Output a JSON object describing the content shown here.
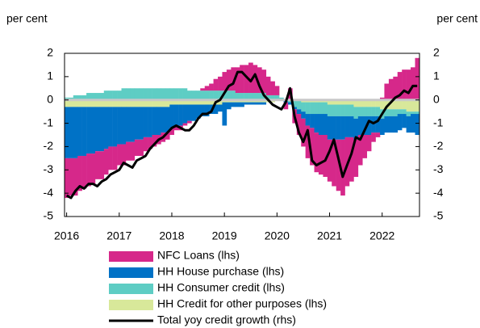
{
  "chart_data": {
    "type": "bar",
    "stacked": true,
    "y_label": "per cent",
    "y2_label": "per cent",
    "x": [
      2016,
      2016.083,
      2016.167,
      2016.25,
      2016.333,
      2016.417,
      2016.5,
      2016.583,
      2016.667,
      2016.75,
      2016.833,
      2016.917,
      2017,
      2017.083,
      2017.167,
      2017.25,
      2017.333,
      2017.417,
      2017.5,
      2017.583,
      2017.667,
      2017.75,
      2017.833,
      2017.917,
      2018,
      2018.083,
      2018.167,
      2018.25,
      2018.333,
      2018.417,
      2018.5,
      2018.583,
      2018.667,
      2018.75,
      2018.833,
      2018.917,
      2019,
      2019.083,
      2019.167,
      2019.25,
      2019.333,
      2019.417,
      2019.5,
      2019.583,
      2019.667,
      2019.75,
      2019.833,
      2019.917,
      2020,
      2020.083,
      2020.167,
      2020.25,
      2020.333,
      2020.417,
      2020.5,
      2020.583,
      2020.667,
      2020.75,
      2020.833,
      2020.917,
      2021,
      2021.083,
      2021.167,
      2021.25,
      2021.333,
      2021.417,
      2021.5,
      2021.583,
      2021.667,
      2021.75,
      2021.833,
      2021.917,
      2022,
      2022.083,
      2022.167,
      2022.25,
      2022.333,
      2022.417,
      2022.5,
      2022.583,
      2022.667
    ],
    "xlim": [
      2015.96,
      2022.71
    ],
    "xticks": [
      2016,
      2017,
      2018,
      2019,
      2020,
      2021,
      2022
    ],
    "ylim": [
      -5,
      2
    ],
    "yticks": [
      2,
      1,
      0,
      -1,
      -2,
      -3,
      -4,
      -5
    ],
    "y2lim": [
      -5,
      2
    ],
    "y2ticks": [
      2,
      1,
      0,
      -1,
      -2,
      -3,
      -4,
      -5
    ],
    "legend": "bottom",
    "series": [
      {
        "name": "NFC Loans (lhs)",
        "color": "#d6288a",
        "values": [
          -1.7,
          -1.6,
          -1.6,
          -1.5,
          -1.4,
          -1.4,
          -1.3,
          -1.2,
          -1.2,
          -1.1,
          -1.0,
          -1.0,
          -0.9,
          -0.9,
          -0.8,
          -0.8,
          -0.7,
          -0.7,
          -0.6,
          -0.5,
          -0.5,
          -0.4,
          -0.4,
          -0.3,
          -0.3,
          -0.2,
          -0.2,
          -0.1,
          -0.1,
          0.0,
          0.0,
          0.1,
          0.2,
          0.3,
          0.5,
          0.6,
          0.8,
          0.9,
          1.0,
          1.1,
          1.2,
          1.2,
          1.3,
          1.2,
          1.1,
          1.0,
          0.8,
          0.6,
          0.4,
          0.0,
          -0.3,
          0.5,
          -0.6,
          -0.9,
          -1.2,
          -1.4,
          -1.6,
          -1.7,
          -1.7,
          -1.8,
          -1.8,
          -2.0,
          -2.2,
          -2.4,
          -2.1,
          -1.9,
          -1.6,
          -1.3,
          -1.0,
          -0.7,
          -0.4,
          -0.2,
          0.1,
          0.7,
          0.9,
          1.0,
          1.2,
          1.3,
          1.3,
          1.4,
          1.8
        ]
      },
      {
        "name": "HH House purchase (lhs)",
        "color": "#0072c6",
        "values": [
          -2.2,
          -2.2,
          -2.2,
          -2.1,
          -2.1,
          -2.0,
          -2.0,
          -1.9,
          -1.9,
          -1.8,
          -1.7,
          -1.7,
          -1.6,
          -1.6,
          -1.5,
          -1.5,
          -1.4,
          -1.4,
          -1.3,
          -1.3,
          -1.2,
          -1.2,
          -1.1,
          -1.1,
          -1.0,
          -0.9,
          -0.9,
          -0.8,
          -0.7,
          -0.7,
          -0.6,
          -0.5,
          -0.5,
          -0.4,
          -0.4,
          -0.3,
          -1.0,
          -0.3,
          -0.2,
          -0.2,
          -0.2,
          -0.1,
          -0.1,
          -0.1,
          -0.1,
          -0.1,
          0.0,
          0.0,
          0.0,
          0.0,
          -0.1,
          -0.1,
          -0.1,
          -0.2,
          -0.3,
          -0.5,
          -0.6,
          -0.8,
          -0.9,
          -0.9,
          -1.0,
          -1.0,
          -1.0,
          -1.0,
          -0.9,
          -0.9,
          -0.9,
          -0.8,
          -0.8,
          -0.8,
          -0.7,
          -0.7,
          -0.7,
          -0.7,
          -0.7,
          -0.7,
          -0.7,
          -0.6,
          -0.7,
          -0.8,
          -0.9
        ]
      },
      {
        "name": "HH Consumer credit (lhs)",
        "color": "#5ecdc4",
        "values": [
          0.1,
          0.1,
          0.2,
          0.2,
          0.2,
          0.3,
          0.3,
          0.3,
          0.3,
          0.4,
          0.4,
          0.4,
          0.4,
          0.5,
          0.5,
          0.5,
          0.5,
          0.5,
          0.5,
          0.5,
          0.5,
          0.5,
          0.5,
          0.5,
          0.5,
          0.5,
          0.5,
          0.5,
          0.4,
          0.4,
          0.4,
          0.4,
          0.4,
          0.4,
          0.4,
          0.4,
          0.4,
          0.4,
          0.4,
          0.3,
          0.3,
          0.3,
          0.3,
          0.3,
          0.3,
          0.3,
          0.2,
          0.2,
          0.2,
          0.1,
          0.0,
          -0.1,
          -0.3,
          -0.4,
          -0.4,
          -0.5,
          -0.5,
          -0.5,
          -0.5,
          -0.5,
          -0.5,
          -0.5,
          -0.5,
          -0.5,
          -0.5,
          -0.5,
          -0.5,
          -0.4,
          -0.4,
          -0.4,
          -0.4,
          -0.4,
          -0.4,
          -0.3,
          -0.3,
          -0.3,
          -0.2,
          -0.2,
          -0.2,
          -0.1,
          -0.1
        ]
      },
      {
        "name": "HH Credit for other purposes (lhs)",
        "color": "#d8e89a",
        "values": [
          -0.3,
          -0.3,
          -0.3,
          -0.3,
          -0.3,
          -0.3,
          -0.3,
          -0.3,
          -0.3,
          -0.3,
          -0.3,
          -0.3,
          -0.3,
          -0.3,
          -0.3,
          -0.3,
          -0.3,
          -0.3,
          -0.3,
          -0.3,
          -0.3,
          -0.3,
          -0.3,
          -0.3,
          -0.2,
          -0.2,
          -0.2,
          -0.2,
          -0.2,
          -0.2,
          -0.2,
          -0.2,
          -0.2,
          -0.2,
          -0.2,
          -0.2,
          -0.1,
          -0.1,
          -0.1,
          -0.1,
          -0.1,
          -0.1,
          -0.1,
          -0.1,
          -0.1,
          -0.1,
          -0.1,
          -0.1,
          0.0,
          0.0,
          0.0,
          0.0,
          0.0,
          0.0,
          -0.1,
          -0.1,
          -0.1,
          -0.1,
          -0.1,
          -0.1,
          -0.2,
          -0.2,
          -0.2,
          -0.2,
          -0.2,
          -0.2,
          -0.3,
          -0.3,
          -0.3,
          -0.3,
          -0.3,
          -0.3,
          -0.4,
          -0.4,
          -0.4,
          -0.4,
          -0.4,
          -0.4,
          -0.5,
          -0.5,
          -0.5
        ]
      },
      {
        "name": "Total yoy credit growth (rhs)",
        "color": "#000000",
        "type": "line",
        "axis": "y2",
        "values": [
          -4.1,
          -4.2,
          -3.9,
          -3.7,
          -3.8,
          -3.6,
          -3.6,
          -3.7,
          -3.5,
          -3.4,
          -3.2,
          -3.1,
          -3.0,
          -2.7,
          -2.8,
          -2.9,
          -2.6,
          -2.5,
          -2.4,
          -2.1,
          -1.9,
          -1.7,
          -1.6,
          -1.4,
          -1.2,
          -1.1,
          -1.2,
          -1.3,
          -1.3,
          -1.1,
          -0.8,
          -0.6,
          -0.6,
          -0.5,
          -0.1,
          0.0,
          0.3,
          0.6,
          0.7,
          1.2,
          1.2,
          1.0,
          0.8,
          1.1,
          0.6,
          0.2,
          0.0,
          -0.2,
          -0.3,
          -0.4,
          -0.1,
          0.5,
          -0.7,
          -1.4,
          -1.8,
          -1.3,
          -2.6,
          -2.8,
          -2.7,
          -2.6,
          -2.2,
          -1.7,
          -2.5,
          -3.3,
          -2.8,
          -2.3,
          -1.6,
          -1.7,
          -1.3,
          -0.9,
          -1.0,
          -0.9,
          -0.6,
          -0.3,
          -0.1,
          0.1,
          0.2,
          0.4,
          0.3,
          0.6,
          0.6
        ]
      }
    ]
  }
}
